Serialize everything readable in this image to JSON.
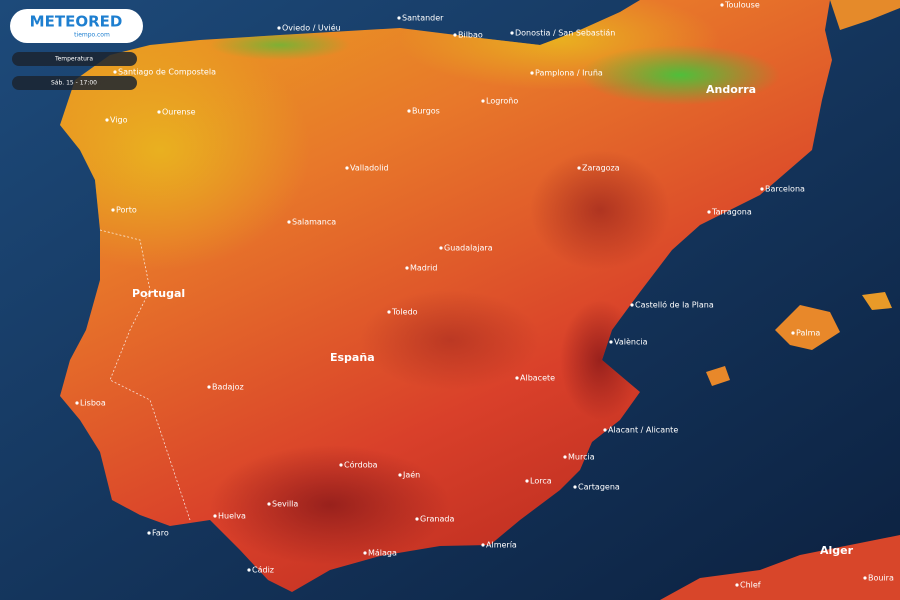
{
  "header": {
    "logo": "METEORED",
    "logo_sub": "tiempo.com"
  },
  "legend": {
    "layer": "Temperatura",
    "time": "Sáb. 15 - 17:00"
  },
  "labels": {
    "countries": [
      "Portugal",
      "España",
      "Andorra",
      "Alger"
    ],
    "cities": [
      "Toulouse",
      "Oviedo / Uviéu",
      "Santander",
      "Bilbao",
      "Donostia / San Sebastián",
      "Santiago de Compostela",
      "Ourense",
      "Vigo",
      "Pamplona / Iruña",
      "Burgos",
      "Logroño",
      "Zaragoza",
      "Valladolid",
      "Barcelona",
      "Tarragona",
      "Porto",
      "Salamanca",
      "Guadalajara",
      "Madrid",
      "Castelló de la Plana",
      "Toledo",
      "Palma",
      "València",
      "Albacete",
      "Lisboa",
      "Badajoz",
      "Alacant / Alicante",
      "Córdoba",
      "Jaén",
      "Murcia",
      "Lorca",
      "Cartagena",
      "Sevilla",
      "Huelva",
      "Granada",
      "Faro",
      "Almería",
      "Málaga",
      "Cádiz",
      "Chlef",
      "Bouira"
    ]
  }
}
